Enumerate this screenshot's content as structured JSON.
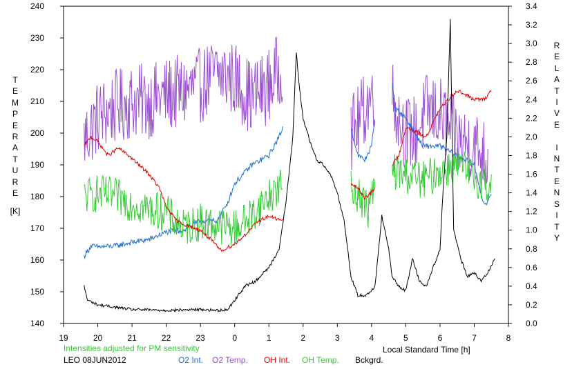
{
  "chart_data": {
    "type": "line",
    "xlabel": "Local Standard Time [h]",
    "ylabel_left": "TEMPERATURE",
    "ylabel_left_unit": "[K]",
    "ylabel_right": "RELATIVE INTENSITY",
    "x_ticks": [
      "19",
      "20",
      "21",
      "22",
      "23",
      "0",
      "1",
      "2",
      "3",
      "4",
      "5",
      "6",
      "7",
      "8"
    ],
    "x_range_hours_after_19LT": [
      0,
      13
    ],
    "y_left_range": [
      140,
      240
    ],
    "y_left_ticks": [
      "140",
      "150",
      "160",
      "170",
      "180",
      "190",
      "200",
      "210",
      "220",
      "230",
      "240"
    ],
    "y_right_range": [
      0.0,
      3.4
    ],
    "y_right_ticks": [
      "0.0",
      "0.2",
      "0.4",
      "0.6",
      "0.8",
      "1.0",
      "1.2",
      "1.4",
      "1.6",
      "1.8",
      "2.0",
      "2.2",
      "2.4",
      "2.6",
      "2.8",
      "3.0",
      "3.2",
      "3.4"
    ],
    "note": "Intensities adjusted for PM sensitivity",
    "station_date": "LEO 08JUN2012",
    "legend": [
      {
        "name": "O2 Int.",
        "color": "#1e6fd9"
      },
      {
        "name": "O2 Temp.",
        "color": "#9b4fd0"
      },
      {
        "name": "OH Int.",
        "color": "#e00000"
      },
      {
        "name": "OH Temp.",
        "color": "#33cc33"
      },
      {
        "name": "Bckgrd.",
        "color": "#000000"
      }
    ],
    "series": [
      {
        "name": "O2 Temp.",
        "axis": "left",
        "color": "#9b4fd0",
        "noise": 12,
        "segments": [
          [
            [
              0.6,
              198
            ],
            [
              1.0,
              205
            ],
            [
              1.5,
              208
            ],
            [
              2.0,
              210
            ],
            [
              2.5,
              210
            ],
            [
              3.0,
              212
            ],
            [
              3.5,
              213
            ],
            [
              4.0,
              215
            ],
            [
              4.5,
              219
            ],
            [
              5.0,
              217
            ],
            [
              5.5,
              211
            ],
            [
              6.0,
              215
            ],
            [
              6.3,
              220
            ],
            [
              6.4,
              222
            ]
          ],
          [
            [
              8.4,
              200
            ],
            [
              8.6,
              203
            ],
            [
              8.9,
              210
            ],
            [
              9.1,
              214
            ]
          ],
          [
            [
              9.6,
              212
            ],
            [
              9.8,
              205
            ],
            [
              10.0,
              200
            ],
            [
              10.3,
              200
            ],
            [
              10.6,
              207
            ],
            [
              11.0,
              206
            ],
            [
              11.5,
              198
            ],
            [
              12.0,
              196
            ],
            [
              12.4,
              192
            ]
          ]
        ]
      },
      {
        "name": "O2 Int.",
        "axis": "right",
        "color": "#1e6fd9",
        "noise": 0.03,
        "segments": [
          [
            [
              0.6,
              0.72
            ],
            [
              0.8,
              0.83
            ],
            [
              1.0,
              0.82
            ],
            [
              1.5,
              0.83
            ],
            [
              2.0,
              0.87
            ],
            [
              2.5,
              0.9
            ],
            [
              3.0,
              0.98
            ],
            [
              3.5,
              1.0
            ],
            [
              4.0,
              1.1
            ],
            [
              4.5,
              1.1
            ],
            [
              4.8,
              1.3
            ],
            [
              5.0,
              1.5
            ],
            [
              5.5,
              1.7
            ],
            [
              6.0,
              1.8
            ],
            [
              6.3,
              2.0
            ],
            [
              6.4,
              2.1
            ]
          ],
          [
            [
              8.4,
              2.1
            ],
            [
              8.6,
              1.8
            ],
            [
              8.8,
              1.75
            ],
            [
              9.0,
              1.9
            ],
            [
              9.1,
              2.2
            ]
          ],
          [
            [
              9.6,
              2.6
            ],
            [
              9.7,
              2.3
            ],
            [
              10.0,
              2.2
            ],
            [
              10.5,
              1.9
            ],
            [
              11.0,
              1.9
            ],
            [
              11.5,
              1.8
            ],
            [
              12.0,
              1.7
            ],
            [
              12.3,
              1.25
            ],
            [
              12.5,
              1.4
            ]
          ]
        ]
      },
      {
        "name": "OH Temp.",
        "axis": "left",
        "color": "#33cc33",
        "noise": 6,
        "segments": [
          [
            [
              0.6,
              180
            ],
            [
              1.0,
              181
            ],
            [
              1.5,
              180
            ],
            [
              2.0,
              178
            ],
            [
              2.5,
              176
            ],
            [
              3.0,
              175
            ],
            [
              3.5,
              170
            ],
            [
              4.0,
              172
            ],
            [
              4.5,
              171
            ],
            [
              5.0,
              170
            ],
            [
              5.5,
              174
            ],
            [
              6.0,
              180
            ],
            [
              6.4,
              184
            ]
          ],
          [
            [
              8.4,
              182
            ],
            [
              8.6,
              181
            ],
            [
              8.9,
              176
            ],
            [
              9.1,
              183
            ]
          ],
          [
            [
              9.6,
              188
            ],
            [
              10.0,
              187
            ],
            [
              10.5,
              185
            ],
            [
              11.0,
              188
            ],
            [
              11.5,
              190
            ],
            [
              12.0,
              186
            ],
            [
              12.5,
              183
            ]
          ]
        ]
      },
      {
        "name": "OH Int.",
        "axis": "right",
        "color": "#e00000",
        "noise": 0.02,
        "segments": [
          [
            [
              0.6,
              1.9
            ],
            [
              0.8,
              2.0
            ],
            [
              1.0,
              1.95
            ],
            [
              1.3,
              1.8
            ],
            [
              1.6,
              1.88
            ],
            [
              1.9,
              1.8
            ],
            [
              2.2,
              1.7
            ],
            [
              2.5,
              1.6
            ],
            [
              2.8,
              1.45
            ],
            [
              3.0,
              1.25
            ],
            [
              3.3,
              1.1
            ],
            [
              3.6,
              1.05
            ],
            [
              4.0,
              1.0
            ],
            [
              4.3,
              0.9
            ],
            [
              4.6,
              0.78
            ],
            [
              5.0,
              0.85
            ],
            [
              5.3,
              0.95
            ],
            [
              5.7,
              1.1
            ],
            [
              6.0,
              1.15
            ],
            [
              6.4,
              1.1
            ]
          ],
          [
            [
              8.4,
              1.5
            ],
            [
              8.6,
              1.45
            ],
            [
              8.8,
              1.35
            ],
            [
              9.0,
              1.4
            ],
            [
              9.1,
              1.45
            ]
          ],
          [
            [
              9.6,
              1.7
            ],
            [
              9.8,
              1.8
            ],
            [
              10.0,
              2.1
            ],
            [
              10.3,
              2.05
            ],
            [
              10.6,
              2.0
            ],
            [
              11.0,
              2.3
            ],
            [
              11.5,
              2.5
            ],
            [
              12.0,
              2.4
            ],
            [
              12.3,
              2.4
            ],
            [
              12.5,
              2.5
            ]
          ]
        ]
      },
      {
        "name": "Bckgrd.",
        "axis": "right",
        "color": "#000000",
        "noise": 0.015,
        "segments": [
          [
            [
              0.6,
              0.4
            ],
            [
              0.7,
              0.25
            ],
            [
              1.0,
              0.2
            ],
            [
              2.0,
              0.15
            ],
            [
              3.0,
              0.14
            ],
            [
              4.0,
              0.15
            ],
            [
              4.5,
              0.14
            ],
            [
              4.8,
              0.15
            ],
            [
              5.0,
              0.25
            ],
            [
              5.3,
              0.4
            ],
            [
              5.6,
              0.45
            ],
            [
              6.0,
              0.6
            ],
            [
              6.3,
              0.8
            ],
            [
              6.5,
              1.3
            ],
            [
              6.7,
              2.0
            ],
            [
              6.8,
              2.9
            ],
            [
              6.9,
              2.5
            ],
            [
              7.0,
              2.2
            ],
            [
              7.2,
              1.95
            ],
            [
              7.4,
              1.75
            ],
            [
              7.6,
              1.7
            ],
            [
              7.8,
              1.6
            ],
            [
              8.0,
              1.4
            ],
            [
              8.2,
              1.1
            ],
            [
              8.3,
              0.8
            ],
            [
              8.4,
              0.5
            ],
            [
              8.6,
              0.3
            ],
            [
              8.8,
              0.3
            ],
            [
              9.0,
              0.35
            ],
            [
              9.1,
              0.4
            ],
            [
              9.3,
              1.15
            ],
            [
              9.5,
              0.8
            ],
            [
              9.6,
              0.5
            ],
            [
              9.8,
              0.4
            ],
            [
              10.0,
              0.35
            ],
            [
              10.2,
              0.7
            ],
            [
              10.4,
              0.45
            ],
            [
              10.6,
              0.4
            ],
            [
              10.8,
              0.6
            ],
            [
              11.0,
              0.8
            ],
            [
              11.1,
              1.5
            ],
            [
              11.2,
              2.0
            ],
            [
              11.3,
              3.25
            ],
            [
              11.4,
              1.0
            ],
            [
              11.6,
              0.7
            ],
            [
              11.8,
              0.5
            ],
            [
              12.0,
              0.55
            ],
            [
              12.2,
              0.45
            ],
            [
              12.4,
              0.55
            ],
            [
              12.6,
              0.7
            ]
          ]
        ]
      }
    ]
  }
}
